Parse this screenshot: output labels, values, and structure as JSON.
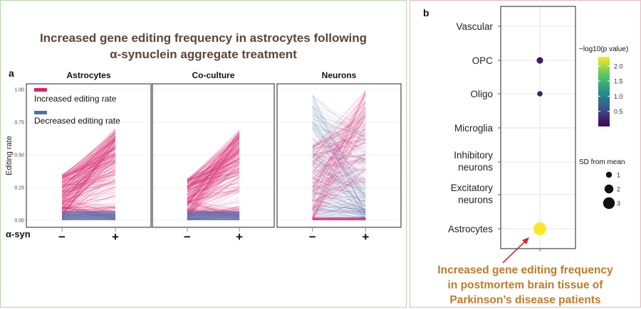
{
  "panel_a": {
    "letter": "a",
    "title_line1": "Increased gene editing frequency in astrocytes following",
    "title_line2": "α-synuclein aggregate treatment",
    "ylabel": "Editing rate",
    "xlabel": "α-syn",
    "x_ticks": [
      "−",
      "+"
    ],
    "y_ticks": [
      "0.00",
      "0.25",
      "0.50",
      "0.75",
      "1.00"
    ],
    "legend": [
      {
        "label": "Increased editing rate",
        "color": "#d6246e"
      },
      {
        "label": "Decreased editing rate",
        "color": "#4f6faa"
      }
    ],
    "facets": [
      "Astrocytes",
      "Co-culture",
      "Neurons"
    ]
  },
  "panel_b": {
    "letter": "b",
    "colorbar_title": "−log10(p value)",
    "colorbar_ticks": [
      "2.0",
      "1.5",
      "1.0",
      "0.5"
    ],
    "size_title": "SD from mean",
    "size_ticks": [
      "1",
      "2",
      "3"
    ],
    "caption_lines": [
      "Increased gene editing frequency",
      "in postmortem brain tissue of",
      "Parkinson’s disease patients"
    ],
    "arrow_color": "#e02424"
  },
  "chart_data": [
    {
      "type": "line",
      "title": "Increased gene editing frequency in astrocytes following α-synuclein aggregate treatment",
      "xlabel": "α-syn",
      "ylabel": "Editing rate",
      "categories": [
        "−",
        "+"
      ],
      "ylim": [
        0,
        1
      ],
      "legend_position": "top-left",
      "facets": [
        {
          "name": "Astrocytes",
          "increased_range_minus": [
            0.0,
            0.35
          ],
          "increased_range_plus": [
            0.0,
            0.72
          ],
          "dominant": "Increased editing rate"
        },
        {
          "name": "Co-culture",
          "increased_range_minus": [
            0.0,
            0.32
          ],
          "increased_range_plus": [
            0.0,
            0.72
          ],
          "dominant": "Increased editing rate"
        },
        {
          "name": "Neurons",
          "increased_range_minus": [
            0.0,
            0.97
          ],
          "increased_range_plus": [
            0.0,
            1.0
          ],
          "dominant": "Decreased editing rate"
        }
      ],
      "series": [
        {
          "name": "Increased editing rate"
        },
        {
          "name": "Decreased editing rate"
        }
      ]
    },
    {
      "type": "scatter",
      "categories": [
        "Vascular",
        "OPC",
        "Oligo",
        "Microglia",
        "Inhibitory neurons",
        "Excitatory neurons",
        "Astrocytes"
      ],
      "points": [
        {
          "category": "OPC",
          "neg_log10_p": 0.2,
          "sd_from_mean": 1.2
        },
        {
          "category": "Oligo",
          "neg_log10_p": 0.2,
          "sd_from_mean": 0.8
        },
        {
          "category": "Astrocytes",
          "neg_log10_p": 2.3,
          "sd_from_mean": 3.4
        }
      ],
      "color_range": [
        0.0,
        2.3
      ],
      "grid": true
    }
  ]
}
